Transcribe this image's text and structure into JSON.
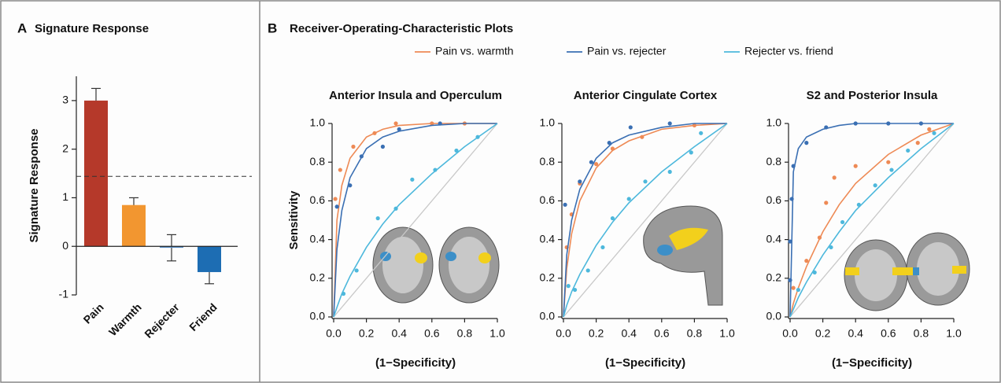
{
  "chart_data": [
    {
      "type": "bar",
      "panel": "A",
      "title": "Signature Response",
      "ylabel": "Signature Response",
      "categories": [
        "Pain",
        "Warmth",
        "Rejecter",
        "Friend"
      ],
      "values": [
        3.0,
        0.85,
        -0.03,
        -0.53
      ],
      "errors": [
        0.25,
        0.15,
        0.27,
        0.24
      ],
      "colors": [
        "#b5392a",
        "#f29630",
        "#5a8ec4",
        "#1d6db3"
      ],
      "reference_line": 1.44,
      "ylim": [
        -1,
        3.5
      ],
      "yticks": [
        -1,
        0,
        1,
        2,
        3
      ]
    },
    {
      "type": "roc",
      "panel": "B",
      "panel_title": "Receiver-Operating-Characteristic Plots",
      "title": "Anterior Insula and Operculum",
      "xlabel": "(1−Specificity)",
      "ylabel": "Sensitivity",
      "xlim": [
        0,
        1
      ],
      "ylim": [
        0,
        1
      ],
      "xticks": [
        {
          "value": 0,
          "label": "0.0"
        },
        0.2,
        0.4,
        0.6,
        0.8,
        {
          "value": 1,
          "label": "1.0"
        }
      ],
      "yticks": [
        {
          "value": 0,
          "label": "0.0"
        },
        0.2,
        0.4,
        0.6,
        0.8,
        {
          "value": 1,
          "label": "1.0"
        }
      ],
      "series": [
        {
          "name": "Pain vs. warmth",
          "color": "#ee8a55",
          "x": [
            0.01,
            0.04,
            0.12,
            0.25,
            0.38,
            0.6,
            0.8
          ],
          "values": [
            0.61,
            0.76,
            0.88,
            0.95,
            1.0,
            1.0,
            1.0
          ],
          "fit_x": [
            0,
            0.02,
            0.05,
            0.1,
            0.2,
            0.3,
            0.4,
            0.6,
            0.8,
            1
          ],
          "fit_y": [
            0,
            0.5,
            0.68,
            0.82,
            0.93,
            0.97,
            0.99,
            1,
            1,
            1
          ]
        },
        {
          "name": "Pain vs. rejecter",
          "color": "#3a6fb3",
          "x": [
            0.02,
            0.1,
            0.17,
            0.3,
            0.4,
            0.65
          ],
          "values": [
            0.57,
            0.68,
            0.83,
            0.88,
            0.97,
            1.0
          ],
          "fit_x": [
            0,
            0.02,
            0.05,
            0.1,
            0.2,
            0.3,
            0.4,
            0.6,
            0.8,
            1
          ],
          "fit_y": [
            0,
            0.35,
            0.55,
            0.72,
            0.87,
            0.93,
            0.96,
            0.99,
            1,
            1
          ]
        },
        {
          "name": "Rejecter vs. friend",
          "color": "#4db8dc",
          "x": [
            0.06,
            0.14,
            0.27,
            0.38,
            0.48,
            0.62,
            0.75,
            0.88
          ],
          "values": [
            0.12,
            0.24,
            0.51,
            0.56,
            0.71,
            0.76,
            0.86,
            0.93
          ],
          "fit_x": [
            0,
            0.02,
            0.05,
            0.1,
            0.2,
            0.3,
            0.4,
            0.6,
            0.8,
            1
          ],
          "fit_y": [
            0,
            0.05,
            0.12,
            0.21,
            0.36,
            0.48,
            0.58,
            0.74,
            0.88,
            1
          ]
        }
      ]
    },
    {
      "type": "roc",
      "title": "Anterior Cingulate Cortex",
      "xlabel": "(1−Specificity)",
      "xlim": [
        0,
        1
      ],
      "ylim": [
        0,
        1
      ],
      "xticks": [
        {
          "value": 0,
          "label": "0.0"
        },
        0.2,
        0.4,
        0.6,
        0.8,
        {
          "value": 1,
          "label": "1.0"
        }
      ],
      "yticks": [
        {
          "value": 0,
          "label": "0.0"
        },
        0.2,
        0.4,
        0.6,
        0.8,
        {
          "value": 1,
          "label": "1.0"
        }
      ],
      "series": [
        {
          "color": "#ee8a55",
          "x": [
            0.02,
            0.05,
            0.1,
            0.2,
            0.3,
            0.48,
            0.8
          ],
          "values": [
            0.36,
            0.53,
            0.69,
            0.79,
            0.87,
            0.93,
            0.99
          ],
          "fit_x": [
            0,
            0.02,
            0.05,
            0.1,
            0.2,
            0.3,
            0.4,
            0.6,
            0.8,
            1
          ],
          "fit_y": [
            0,
            0.25,
            0.43,
            0.6,
            0.77,
            0.86,
            0.91,
            0.97,
            0.99,
            1
          ]
        },
        {
          "color": "#3a6fb3",
          "x": [
            0.01,
            0.1,
            0.17,
            0.28,
            0.41,
            0.65
          ],
          "values": [
            0.58,
            0.7,
            0.8,
            0.9,
            0.98,
            1.0
          ],
          "fit_x": [
            0,
            0.02,
            0.05,
            0.1,
            0.2,
            0.3,
            0.4,
            0.6,
            0.8,
            1
          ],
          "fit_y": [
            0,
            0.32,
            0.5,
            0.66,
            0.82,
            0.9,
            0.94,
            0.98,
            1,
            1
          ]
        },
        {
          "color": "#4db8dc",
          "x": [
            0.03,
            0.07,
            0.15,
            0.24,
            0.3,
            0.4,
            0.5,
            0.65,
            0.78,
            0.84
          ],
          "values": [
            0.16,
            0.14,
            0.24,
            0.36,
            0.51,
            0.61,
            0.7,
            0.75,
            0.85,
            0.95
          ],
          "fit_x": [
            0,
            0.02,
            0.05,
            0.1,
            0.2,
            0.3,
            0.4,
            0.6,
            0.8,
            1
          ],
          "fit_y": [
            0,
            0.06,
            0.13,
            0.22,
            0.37,
            0.49,
            0.59,
            0.75,
            0.88,
            1
          ]
        }
      ]
    },
    {
      "type": "roc",
      "title": "S2 and Posterior Insula",
      "xlabel": "(1−Specificity)",
      "xlim": [
        0,
        1
      ],
      "ylim": [
        0,
        1
      ],
      "xticks": [
        {
          "value": 0,
          "label": "0.0"
        },
        0.2,
        0.4,
        0.6,
        0.8,
        {
          "value": 1,
          "label": "1.0"
        }
      ],
      "yticks": [
        {
          "value": 0,
          "label": "0.0"
        },
        0.2,
        0.4,
        0.6,
        0.8,
        {
          "value": 1,
          "label": "1.0"
        }
      ],
      "series": [
        {
          "color": "#ee8a55",
          "x": [
            0.02,
            0.1,
            0.18,
            0.22,
            0.27,
            0.4,
            0.6,
            0.78,
            0.85
          ],
          "values": [
            0.15,
            0.29,
            0.41,
            0.59,
            0.72,
            0.78,
            0.8,
            0.9,
            0.97
          ],
          "fit_x": [
            0,
            0.02,
            0.05,
            0.1,
            0.2,
            0.3,
            0.4,
            0.6,
            0.8,
            1
          ],
          "fit_y": [
            0,
            0.07,
            0.15,
            0.26,
            0.44,
            0.58,
            0.69,
            0.84,
            0.94,
            1
          ]
        },
        {
          "color": "#3a6fb3",
          "x": [
            0.0,
            0.0,
            0.01,
            0.02,
            0.1,
            0.22,
            0.4,
            0.6,
            0.8
          ],
          "values": [
            0.19,
            0.39,
            0.61,
            0.78,
            0.9,
            0.98,
            1.0,
            1.0,
            1.0
          ],
          "fit_x": [
            0,
            0.02,
            0.05,
            0.1,
            0.2,
            0.3,
            0.4,
            0.6,
            0.8,
            1
          ],
          "fit_y": [
            0,
            0.75,
            0.87,
            0.93,
            0.97,
            0.99,
            1,
            1,
            1,
            1
          ]
        },
        {
          "color": "#4db8dc",
          "x": [
            0.05,
            0.15,
            0.25,
            0.32,
            0.42,
            0.52,
            0.62,
            0.72,
            0.88
          ],
          "values": [
            0.14,
            0.23,
            0.36,
            0.49,
            0.58,
            0.68,
            0.76,
            0.86,
            0.95
          ],
          "fit_x": [
            0,
            0.02,
            0.05,
            0.1,
            0.2,
            0.3,
            0.4,
            0.6,
            0.8,
            1
          ],
          "fit_y": [
            0,
            0.04,
            0.1,
            0.18,
            0.32,
            0.44,
            0.55,
            0.72,
            0.87,
            1
          ]
        }
      ]
    }
  ]
}
